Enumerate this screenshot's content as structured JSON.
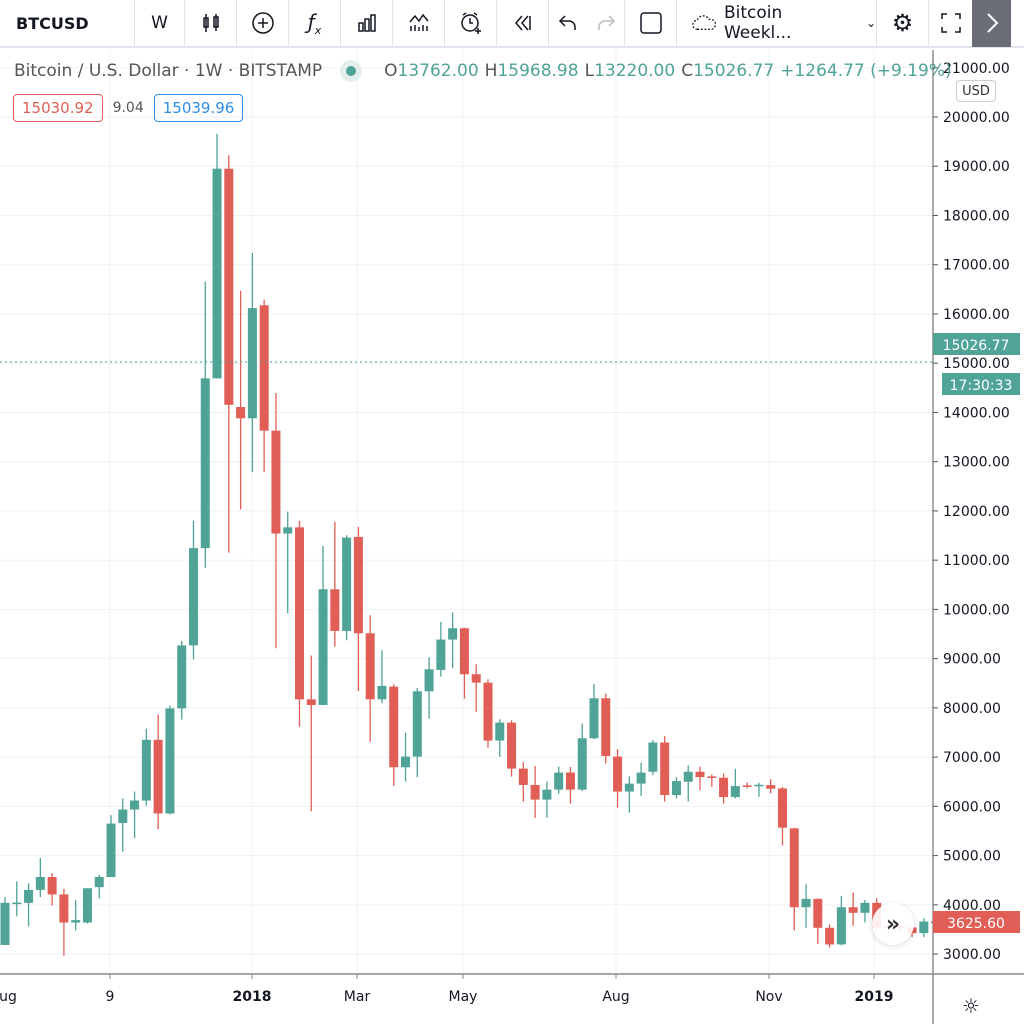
{
  "toolbar": {
    "symbol": "BTCUSD",
    "interval": "W",
    "icons": [
      "candles-icon",
      "add-compare-icon",
      "indicators-icon",
      "financials-icon",
      "templates-icon",
      "alert-icon",
      "replay-icon",
      "undo-icon",
      "redo-icon",
      "fullscreen-square-icon"
    ],
    "layout_name": "Bitcoin Weekl...",
    "settings_icon": "gear-icon",
    "fullscreen_icon": "expand-icon",
    "collapse_icon": "chevron-right-icon"
  },
  "legend": {
    "title": "Bitcoin / U.S. Dollar · 1W · BITSTAMP",
    "o_label": "O",
    "o": "13762.00",
    "h_label": "H",
    "h": "15968.98",
    "l_label": "L",
    "l": "13220.00",
    "c_label": "C",
    "c": "15026.77",
    "change": "+1264.77 (+9.19%)"
  },
  "badges": {
    "sell": "15030.92",
    "spread": "9.04",
    "buy": "15039.96"
  },
  "price_axis": {
    "currency": "USD",
    "last_price_label": "15026.77",
    "countdown": "17:30:33",
    "current_label": "3625.60",
    "ticks": [
      "21000.00",
      "20000.00",
      "19000.00",
      "18000.00",
      "17000.00",
      "16000.00",
      "15000.00",
      "14000.00",
      "13000.00",
      "12000.00",
      "11000.00",
      "10000.00",
      "9000.00",
      "8000.00",
      "7000.00",
      "6000.00",
      "5000.00",
      "4000.00",
      "3000.00"
    ]
  },
  "time_axis": {
    "labels": [
      "ug",
      "9",
      "2018",
      "Mar",
      "May",
      "Aug",
      "Nov",
      "2019"
    ]
  },
  "colors": {
    "up": "#4fa397",
    "down": "#e15e56",
    "grid": "#eef1f5",
    "sell": "#e15e56",
    "buy": "#2f8ee5"
  },
  "chart_data": {
    "type": "candlestick",
    "interval": "1W",
    "yrange": [
      2500,
      21000
    ],
    "grid": true,
    "fields": [
      "open",
      "high",
      "low",
      "close"
    ],
    "candles": [
      [
        3185,
        4155,
        3185,
        4041
      ],
      [
        4040,
        4475,
        3767,
        4045
      ],
      [
        4041,
        4440,
        3561,
        4303
      ],
      [
        4303,
        4954,
        4155,
        4565
      ],
      [
        4565,
        4645,
        3984,
        4212
      ],
      [
        4212,
        4326,
        2967,
        3641
      ],
      [
        3641,
        4097,
        3481,
        3690
      ],
      [
        3641,
        4337,
        3620,
        4337
      ],
      [
        4360,
        4611,
        4130,
        4565
      ],
      [
        4565,
        5821,
        4565,
        5650
      ],
      [
        5662,
        6164,
        5080,
        5936
      ],
      [
        5936,
        6300,
        5353,
        6118
      ],
      [
        6118,
        7580,
        6015,
        7351
      ],
      [
        7351,
        7865,
        5536,
        5856
      ],
      [
        5856,
        8050,
        5836,
        7990
      ],
      [
        7990,
        9360,
        7762,
        9269
      ],
      [
        9269,
        11800,
        8984,
        11244
      ],
      [
        11244,
        16655,
        10845,
        14692
      ],
      [
        14692,
        19660,
        14692,
        18950
      ],
      [
        18950,
        19224,
        11153,
        14155
      ],
      [
        14110,
        16472,
        12032,
        13881
      ],
      [
        13881,
        17237,
        12785,
        16119
      ],
      [
        16176,
        16290,
        12785,
        13630
      ],
      [
        13630,
        14395,
        9212,
        11541
      ],
      [
        11541,
        11986,
        9920,
        11666
      ],
      [
        11666,
        11800,
        7614,
        8173
      ],
      [
        8173,
        9063,
        5901,
        8059
      ],
      [
        8059,
        11290,
        8059,
        10410
      ],
      [
        10409,
        11777,
        9245,
        9563
      ],
      [
        9563,
        11506,
        9373,
        11458
      ],
      [
        11472,
        11675,
        8344,
        9515
      ],
      [
        9515,
        9881,
        7308,
        8175
      ],
      [
        8175,
        9170,
        8094,
        8446
      ],
      [
        8432,
        8480,
        6415,
        6794
      ],
      [
        6794,
        7498,
        6503,
        7011
      ],
      [
        7011,
        8405,
        6591,
        8337
      ],
      [
        8337,
        9028,
        7782,
        8784
      ],
      [
        8771,
        9746,
        8635,
        9387
      ],
      [
        9387,
        9935,
        8805,
        9617
      ],
      [
        9617,
        9630,
        8188,
        8683
      ],
      [
        8683,
        8886,
        7918,
        8513
      ],
      [
        8513,
        8581,
        7193,
        7336
      ],
      [
        7336,
        7769,
        7004,
        7701
      ],
      [
        7701,
        7749,
        6604,
        6767
      ],
      [
        6767,
        6902,
        6097,
        6435
      ],
      [
        6435,
        6821,
        5765,
        6137
      ],
      [
        6137,
        6503,
        5765,
        6340
      ],
      [
        6340,
        6807,
        6259,
        6686
      ],
      [
        6686,
        6800,
        6056,
        6340
      ],
      [
        6340,
        7681,
        6313,
        7383
      ],
      [
        7383,
        8486,
        7363,
        8195
      ],
      [
        8195,
        8290,
        6868,
        7024
      ],
      [
        7011,
        7160,
        5975,
        6300
      ],
      [
        6300,
        6611,
        5873,
        6462
      ],
      [
        6462,
        6889,
        6211,
        6686
      ],
      [
        6703,
        7345,
        6635,
        7297
      ],
      [
        7297,
        7426,
        6095,
        6230
      ],
      [
        6230,
        6595,
        6162,
        6513
      ],
      [
        6500,
        6831,
        6095,
        6703
      ],
      [
        6703,
        6804,
        6324,
        6595
      ],
      [
        6608,
        6649,
        6392,
        6588
      ],
      [
        6581,
        6669,
        6054,
        6189
      ],
      [
        6189,
        6763,
        6162,
        6412
      ],
      [
        6426,
        6486,
        6365,
        6399
      ],
      [
        6412,
        6480,
        6196,
        6439
      ],
      [
        6432,
        6554,
        6264,
        6358
      ],
      [
        6365,
        6392,
        5203,
        5567
      ],
      [
        5554,
        5567,
        3480,
        3952
      ],
      [
        3952,
        4419,
        3534,
        4121
      ],
      [
        4121,
        4135,
        3209,
        3534
      ],
      [
        3534,
        3601,
        3135,
        3196
      ],
      [
        3196,
        4182,
        3182,
        3952
      ],
      [
        3952,
        4250,
        3574,
        3838
      ],
      [
        3838,
        4101,
        3642,
        4040
      ],
      [
        4040,
        4135,
        3450,
        3527
      ],
      [
        3574,
        3600,
        3400,
        3527
      ],
      [
        3560,
        3580,
        3450,
        3540
      ],
      [
        3541,
        3541,
        3344,
        3425
      ],
      [
        3425,
        3730,
        3344,
        3662
      ],
      [
        3660,
        3680,
        3600,
        3626
      ]
    ],
    "last_price_line": 15026.77
  }
}
